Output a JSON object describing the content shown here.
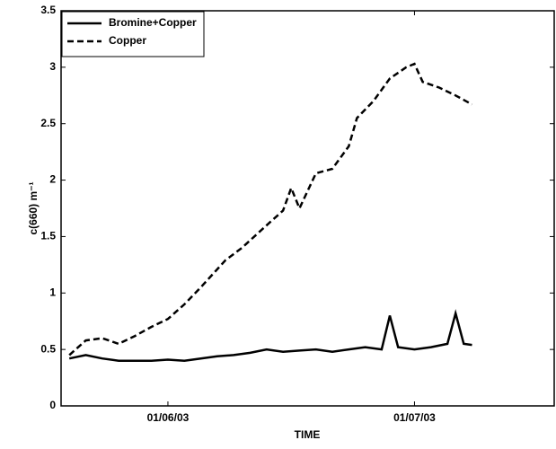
{
  "chart_data": {
    "type": "line",
    "xlabel": "TIME",
    "ylabel": "c(660) m⁻¹",
    "xlim": [
      "2003-05-19",
      "2003-07-18"
    ],
    "xticks": [
      {
        "value": "2003-06-01",
        "label": "01/06/03"
      },
      {
        "value": "2003-07-01",
        "label": "01/07/03"
      }
    ],
    "ylim": [
      0,
      3.5
    ],
    "yticks": [
      0,
      0.5,
      1,
      1.5,
      2,
      2.5,
      3,
      3.5
    ],
    "legend": "top-left",
    "series": [
      {
        "name": "Bromine+Copper",
        "color": "#000000",
        "style": "solid",
        "x": [
          "2003-05-20",
          "2003-05-22",
          "2003-05-24",
          "2003-05-26",
          "2003-05-28",
          "2003-05-30",
          "2003-06-01",
          "2003-06-03",
          "2003-06-05",
          "2003-06-07",
          "2003-06-09",
          "2003-06-11",
          "2003-06-13",
          "2003-06-15",
          "2003-06-17",
          "2003-06-19",
          "2003-06-21",
          "2003-06-23",
          "2003-06-25",
          "2003-06-27",
          "2003-06-28",
          "2003-06-29",
          "2003-07-01",
          "2003-07-03",
          "2003-07-05",
          "2003-07-06",
          "2003-07-07",
          "2003-07-08"
        ],
        "values": [
          0.42,
          0.45,
          0.42,
          0.4,
          0.4,
          0.4,
          0.41,
          0.4,
          0.42,
          0.44,
          0.45,
          0.47,
          0.5,
          0.48,
          0.49,
          0.5,
          0.48,
          0.5,
          0.52,
          0.5,
          0.8,
          0.52,
          0.5,
          0.52,
          0.55,
          0.82,
          0.55,
          0.54
        ]
      },
      {
        "name": "Copper",
        "color": "#000000",
        "style": "dashed",
        "x": [
          "2003-05-20",
          "2003-05-22",
          "2003-05-24",
          "2003-05-26",
          "2003-05-28",
          "2003-05-30",
          "2003-06-01",
          "2003-06-03",
          "2003-06-05",
          "2003-06-08",
          "2003-06-10",
          "2003-06-13",
          "2003-06-15",
          "2003-06-16",
          "2003-06-17",
          "2003-06-19",
          "2003-06-21",
          "2003-06-23",
          "2003-06-24",
          "2003-06-26",
          "2003-06-28",
          "2003-06-30",
          "2003-07-01",
          "2003-07-02",
          "2003-07-04",
          "2003-07-06",
          "2003-07-08"
        ],
        "values": [
          0.45,
          0.58,
          0.6,
          0.55,
          0.62,
          0.7,
          0.77,
          0.9,
          1.05,
          1.29,
          1.4,
          1.6,
          1.73,
          1.93,
          1.75,
          2.06,
          2.1,
          2.3,
          2.55,
          2.7,
          2.9,
          3.0,
          3.03,
          2.87,
          2.82,
          2.75,
          2.67
        ]
      }
    ]
  }
}
